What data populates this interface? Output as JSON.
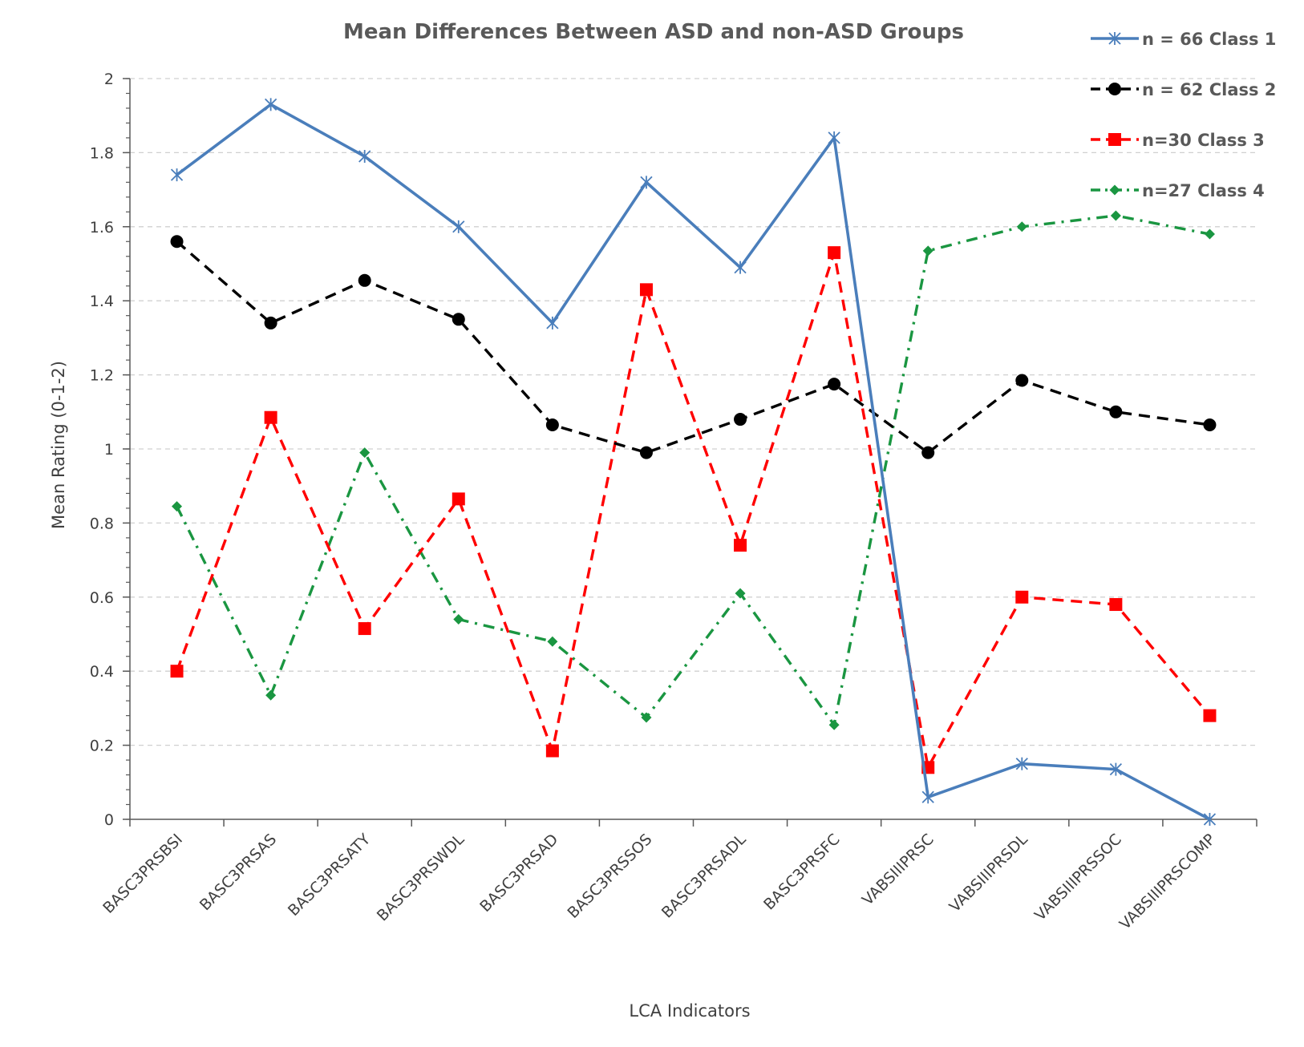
{
  "chart_data": {
    "type": "line",
    "title": "Mean Differences Between ASD and non-ASD Groups",
    "xlabel": "LCA Indicators",
    "ylabel": "Mean Rating (0-1-2)",
    "ylim": [
      0,
      2
    ],
    "yticks": [
      0,
      0.2,
      0.4,
      0.6,
      0.8,
      1,
      1.2,
      1.4,
      1.6,
      1.8,
      2
    ],
    "ytick_labels": [
      "0",
      "0.2",
      "0.4",
      "0.6",
      "0.8",
      "1",
      "1.2",
      "1.4",
      "1.6",
      "1.8",
      "2"
    ],
    "grid": "horizontal dashed",
    "legend_position": "top-right",
    "categories": [
      "BASC3PRSBSI",
      "BASC3PRSAS",
      "BASC3PRSATY",
      "BASC3PRSWDL",
      "BASC3PRSAD",
      "BASC3PRSSOS",
      "BASC3PRSADL",
      "BASC3PRSFC",
      "VABSIIIPRSC",
      "VABSIIIPRSDL",
      "VABSIIIPRSSOC",
      "VABSIIIPRSCOMP"
    ],
    "series": [
      {
        "name": "n = 66 Class 1",
        "color": "#4a7ebb",
        "line_style": "solid",
        "marker": "star",
        "values": [
          1.74,
          1.93,
          1.79,
          1.6,
          1.34,
          1.72,
          1.49,
          1.84,
          0.06,
          0.15,
          0.135,
          0.0
        ]
      },
      {
        "name": "n = 62 Class 2",
        "color": "#000000",
        "line_style": "dashed",
        "marker": "circle",
        "values": [
          1.56,
          1.34,
          1.455,
          1.35,
          1.065,
          0.99,
          1.08,
          1.175,
          0.99,
          1.185,
          1.1,
          1.065
        ]
      },
      {
        "name": "n=30 Class 3",
        "color": "#ff0000",
        "line_style": "dashed",
        "marker": "square",
        "values": [
          0.4,
          1.085,
          0.515,
          0.865,
          0.185,
          1.43,
          0.74,
          1.53,
          0.14,
          0.6,
          0.58,
          0.28
        ]
      },
      {
        "name": "n=27 Class 4",
        "color": "#1a9641",
        "line_style": "dash-dot",
        "marker": "diamond",
        "values": [
          0.845,
          0.335,
          0.99,
          0.54,
          0.48,
          0.275,
          0.61,
          0.255,
          1.535,
          1.6,
          1.63,
          1.58
        ]
      }
    ]
  }
}
